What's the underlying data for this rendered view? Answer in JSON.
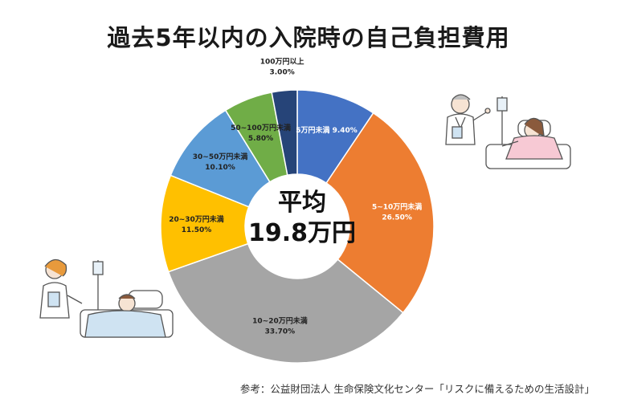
{
  "title": "過去5年以内の入院時の自己負担費用",
  "center": {
    "line1": "平均",
    "line2": "19.8万円"
  },
  "source": "参考：公益財団法人 生命保険文化センター「リスクに備えるための生活設計」",
  "chart_data": {
    "type": "pie",
    "subtype": "donut",
    "unit": "%",
    "slices": [
      {
        "label": "5万円未満",
        "value": 9.4,
        "value_label": "9.40%",
        "color": "#4472c4"
      },
      {
        "label": "5~10万円未満",
        "value": 26.5,
        "value_label": "26.50%",
        "color": "#ed7d31"
      },
      {
        "label": "10~20万円未満",
        "value": 33.7,
        "value_label": "33.70%",
        "color": "#a5a5a5"
      },
      {
        "label": "20~30万円未満",
        "value": 11.5,
        "value_label": "11.50%",
        "color": "#ffc000"
      },
      {
        "label": "30~50万円未満",
        "value": 10.1,
        "value_label": "10.10%",
        "color": "#5b9bd5"
      },
      {
        "label": "50~100万円未満",
        "value": 5.8,
        "value_label": "5.80%",
        "color": "#70ad47"
      },
      {
        "label": "100万円以上",
        "value": 3.0,
        "value_label": "3.00%",
        "color": "#264478"
      }
    ]
  }
}
